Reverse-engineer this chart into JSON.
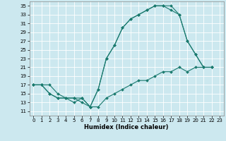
{
  "title": "",
  "xlabel": "Humidex (Indice chaleur)",
  "ylabel": "",
  "bg_color": "#cce8ef",
  "grid_color": "#ffffff",
  "line_color": "#1a7a6e",
  "xlim": [
    -0.5,
    23.5
  ],
  "ylim": [
    10,
    36
  ],
  "xticks": [
    0,
    1,
    2,
    3,
    4,
    5,
    6,
    7,
    8,
    9,
    10,
    11,
    12,
    13,
    14,
    15,
    16,
    17,
    18,
    19,
    20,
    21,
    22,
    23
  ],
  "yticks": [
    11,
    13,
    15,
    17,
    19,
    21,
    23,
    25,
    27,
    29,
    31,
    33,
    35
  ],
  "line1_x": [
    0,
    1,
    2,
    3,
    4,
    5,
    6,
    7,
    8,
    9,
    10,
    11,
    12,
    13,
    14,
    15,
    16,
    17,
    18,
    19,
    20,
    21,
    22
  ],
  "line1_y": [
    17,
    17,
    17,
    15,
    14,
    14,
    14,
    12,
    16,
    23,
    26,
    30,
    32,
    33,
    34,
    35,
    35,
    35,
    33,
    27,
    24,
    21,
    21
  ],
  "line2_x": [
    0,
    1,
    2,
    3,
    4,
    5,
    6,
    7,
    8,
    9,
    10,
    11,
    12,
    13,
    14,
    15,
    16,
    17,
    18,
    19,
    20,
    21,
    22
  ],
  "line2_y": [
    17,
    17,
    15,
    14,
    14,
    14,
    13,
    12,
    16,
    23,
    26,
    30,
    32,
    33,
    34,
    35,
    35,
    34,
    33,
    27,
    24,
    21,
    21
  ],
  "line3_x": [
    0,
    1,
    2,
    3,
    4,
    5,
    6,
    7,
    8,
    9,
    10,
    11,
    12,
    13,
    14,
    15,
    16,
    17,
    18,
    19,
    20,
    21,
    22
  ],
  "line3_y": [
    17,
    17,
    15,
    14,
    14,
    13,
    14,
    12,
    12,
    14,
    15,
    16,
    17,
    18,
    18,
    19,
    20,
    20,
    21,
    20,
    21,
    21,
    21
  ],
  "xlabel_fontsize": 6,
  "tick_fontsize": 5,
  "lw": 0.8,
  "ms": 2.0
}
